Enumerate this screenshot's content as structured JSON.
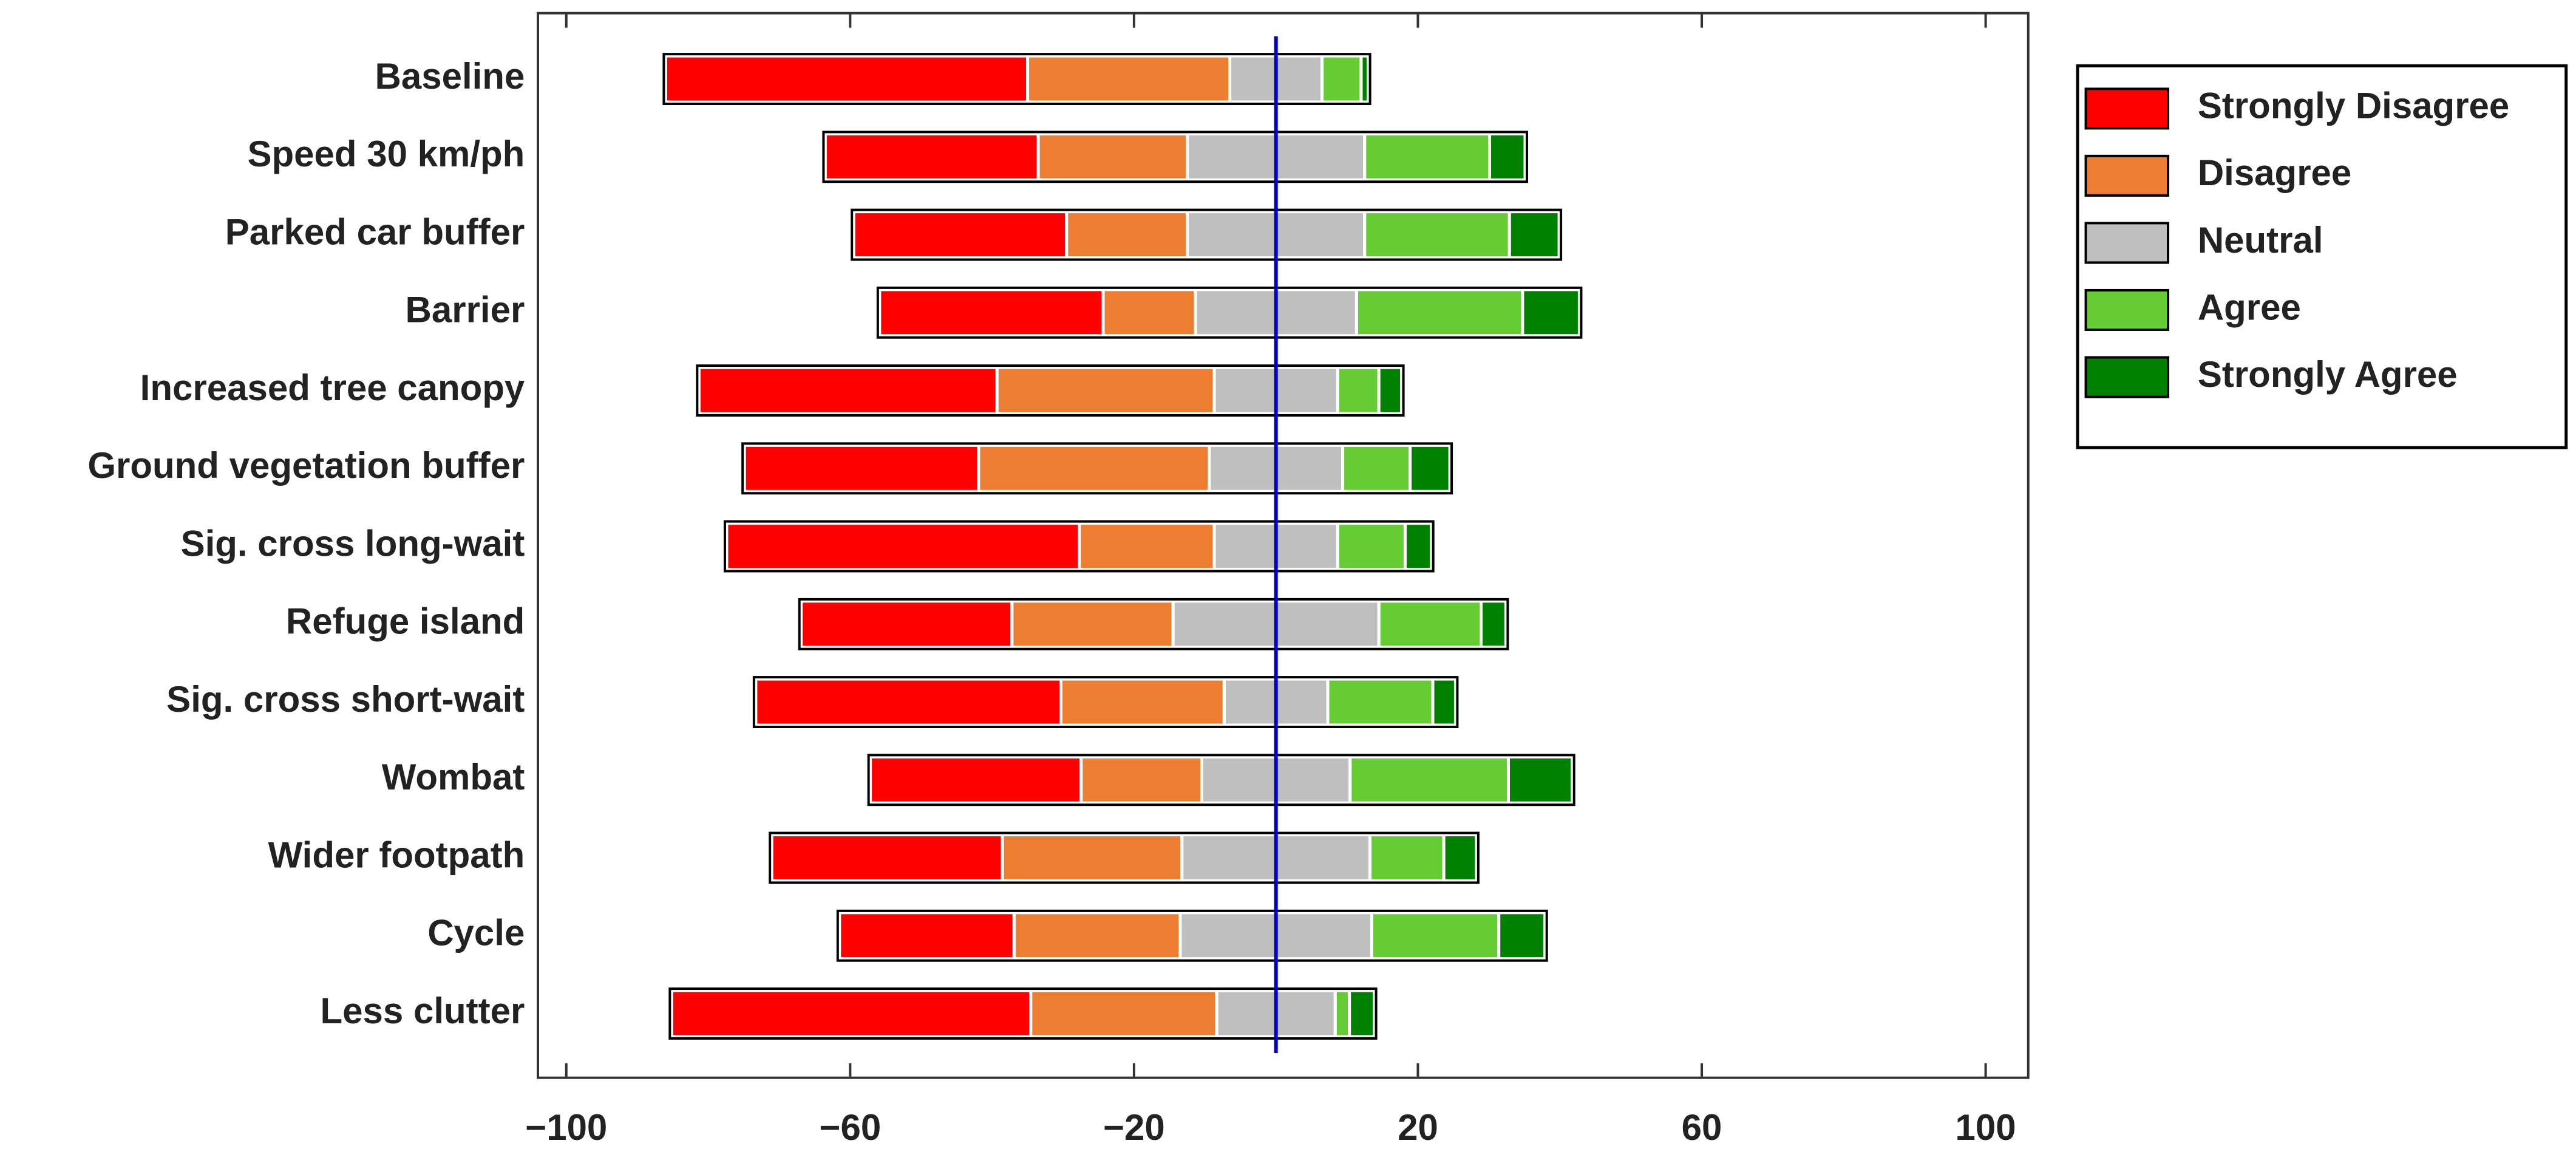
{
  "chart_data": {
    "type": "diverging-stacked-bar",
    "categories": [
      "Baseline",
      "Speed 30 km/ph",
      "Parked car buffer",
      "Barrier",
      "Increased tree canopy",
      "Ground vegetation buffer",
      "Sig. cross long-wait",
      "Refuge island",
      "Sig. cross short-wait",
      "Wombat",
      "Wider footpath",
      "Cycle",
      "Less clutter"
    ],
    "series": [
      {
        "name": "Strongly Disagree",
        "color": "#ff0000",
        "values": [
          51,
          30,
          30,
          31.5,
          42,
          33,
          49.7,
          29.7,
          43,
          29.7,
          32.5,
          24.6,
          50.6
        ]
      },
      {
        "name": "Disagree",
        "color": "#ed7d31",
        "values": [
          28.5,
          21,
          17,
          13,
          30.6,
          32.5,
          19,
          22.7,
          23,
          17,
          25.3,
          23.4,
          26.2
        ]
      },
      {
        "name": "Neutral",
        "color": "#bfbfbf",
        "values": [
          13,
          25,
          25,
          22.7,
          17.4,
          18.8,
          17.4,
          29,
          14.6,
          20.9,
          26.5,
          27,
          16.7
        ]
      },
      {
        "name": "Agree",
        "color": "#66cc33",
        "values": [
          5.5,
          17.6,
          20.4,
          23.4,
          5.8,
          9.5,
          9.5,
          14.4,
          14.8,
          22.3,
          10.4,
          17.9,
          2
        ]
      },
      {
        "name": "Strongly Agree",
        "color": "#008000",
        "values": [
          1,
          5,
          7,
          8,
          3.2,
          5.6,
          3.7,
          3.5,
          3.2,
          9,
          4.6,
          6.5,
          3.5
        ]
      }
    ],
    "xlim": [
      -104,
      106
    ],
    "xticks": [
      {
        "value": -100,
        "label": "−100"
      },
      {
        "value": -60,
        "label": "−60"
      },
      {
        "value": -20,
        "label": "−20"
      },
      20,
      60,
      100
    ],
    "reference_line": 0,
    "reference_color": "#0000cc",
    "legend": "right"
  }
}
